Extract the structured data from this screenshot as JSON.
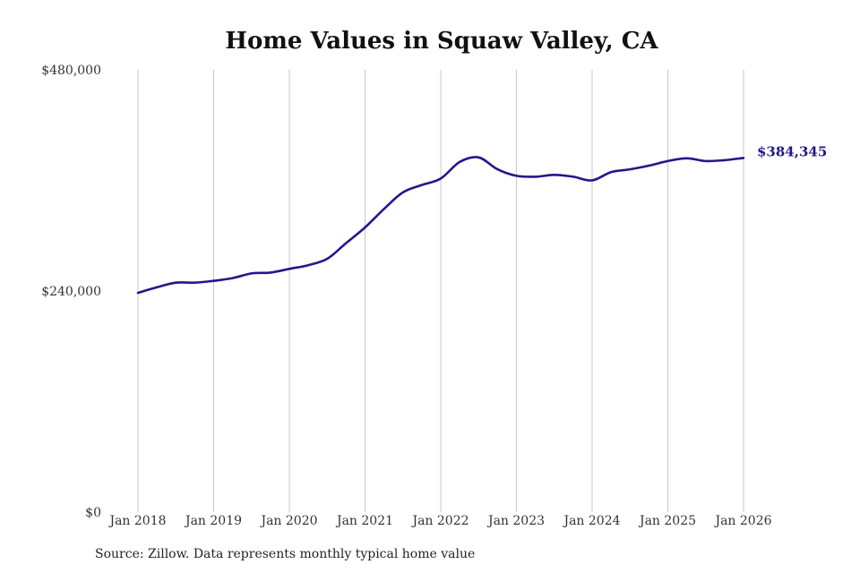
{
  "chart_data": {
    "type": "line",
    "title": "Home Values in Squaw Valley, CA",
    "xlabel": "",
    "ylabel": "",
    "ylim": [
      0,
      480000
    ],
    "yticks": [
      0,
      240000,
      480000
    ],
    "ytick_labels": [
      "$0",
      "$240,000",
      "$480,000"
    ],
    "xlim": [
      "2018-01",
      "2026-01"
    ],
    "xtick_labels": [
      "Jan 2018",
      "Jan 2019",
      "Jan 2020",
      "Jan 2021",
      "Jan 2022",
      "Jan 2023",
      "Jan 2024",
      "Jan 2025",
      "Jan 2026"
    ],
    "grid": "vertical",
    "legend": "none",
    "series": [
      {
        "color": "#21188a",
        "x": [
          "2018-01",
          "2018-04",
          "2018-07",
          "2018-10",
          "2019-01",
          "2019-04",
          "2019-07",
          "2019-10",
          "2020-01",
          "2020-04",
          "2020-07",
          "2020-10",
          "2021-01",
          "2021-04",
          "2021-07",
          "2021-10",
          "2022-01",
          "2022-04",
          "2022-07",
          "2022-10",
          "2023-01",
          "2023-04",
          "2023-07",
          "2023-10",
          "2024-01",
          "2024-04",
          "2024-07",
          "2024-10",
          "2025-01",
          "2025-04",
          "2025-07",
          "2025-10",
          "2026-01"
        ],
        "values": [
          238000,
          244000,
          249000,
          249000,
          251000,
          254000,
          259000,
          260000,
          264000,
          268000,
          275000,
          292000,
          309000,
          329000,
          347000,
          355000,
          362000,
          380000,
          385000,
          372000,
          365000,
          364000,
          366000,
          364000,
          360000,
          369000,
          372000,
          376000,
          381000,
          384000,
          381000,
          382000,
          384345
        ]
      }
    ],
    "annotations": [
      {
        "text": "$384,345",
        "x": "2026-01",
        "y": 384345,
        "color": "#21188a"
      }
    ]
  },
  "footer": {
    "source": "Source: Zillow. Data represents monthly typical home value"
  }
}
